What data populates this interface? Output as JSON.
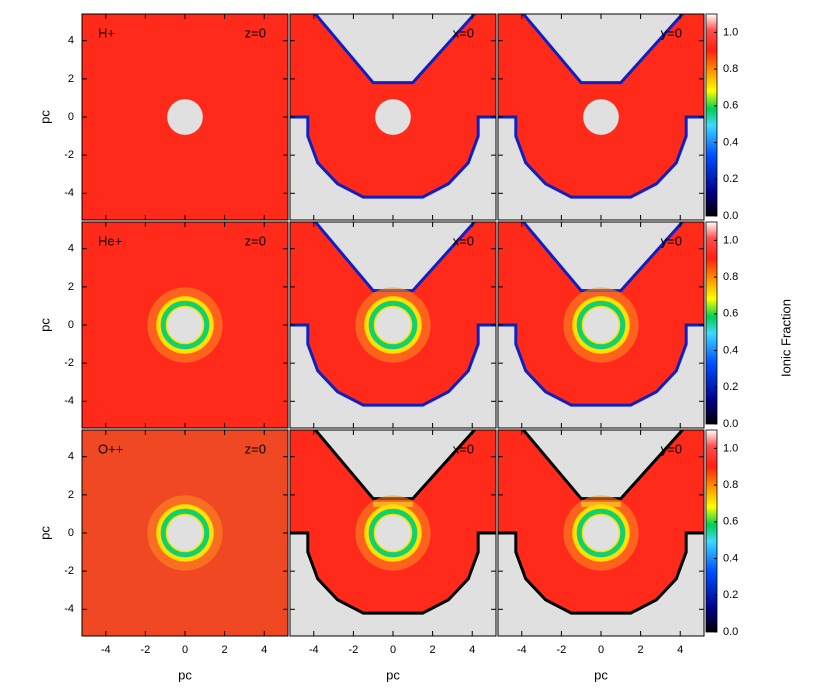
{
  "chart_data": {
    "type": "heatmap-grid",
    "rows": [
      {
        "ion": "H+",
        "slices": [
          "z=0",
          "x=0",
          "y=0"
        ]
      },
      {
        "ion": "He+",
        "slices": [
          "z=0",
          "x=0",
          "y=0"
        ]
      },
      {
        "ion": "O++",
        "slices": [
          "z=0",
          "x=0",
          "y=0"
        ]
      }
    ],
    "xlabel": "pc",
    "ylabel": "pc",
    "xlim": [
      -5.2,
      5.2
    ],
    "ylim": [
      -5.4,
      5.4
    ],
    "xticks": [
      -4,
      -2,
      0,
      2,
      4
    ],
    "yticks": [
      -4,
      -2,
      0,
      2,
      4
    ],
    "colorbar": {
      "label": "Ionic Fraction",
      "lim": [
        0,
        1.1
      ],
      "ticks": [
        {
          "value": 0,
          "label": "0.0"
        },
        {
          "value": 0.2,
          "label": "0.2"
        },
        {
          "value": 0.4,
          "label": "0.4"
        },
        {
          "value": 0.6,
          "label": "0.6"
        },
        {
          "value": 0.8,
          "label": "0.8"
        },
        {
          "value": 1,
          "label": "1.0"
        }
      ]
    }
  }
}
